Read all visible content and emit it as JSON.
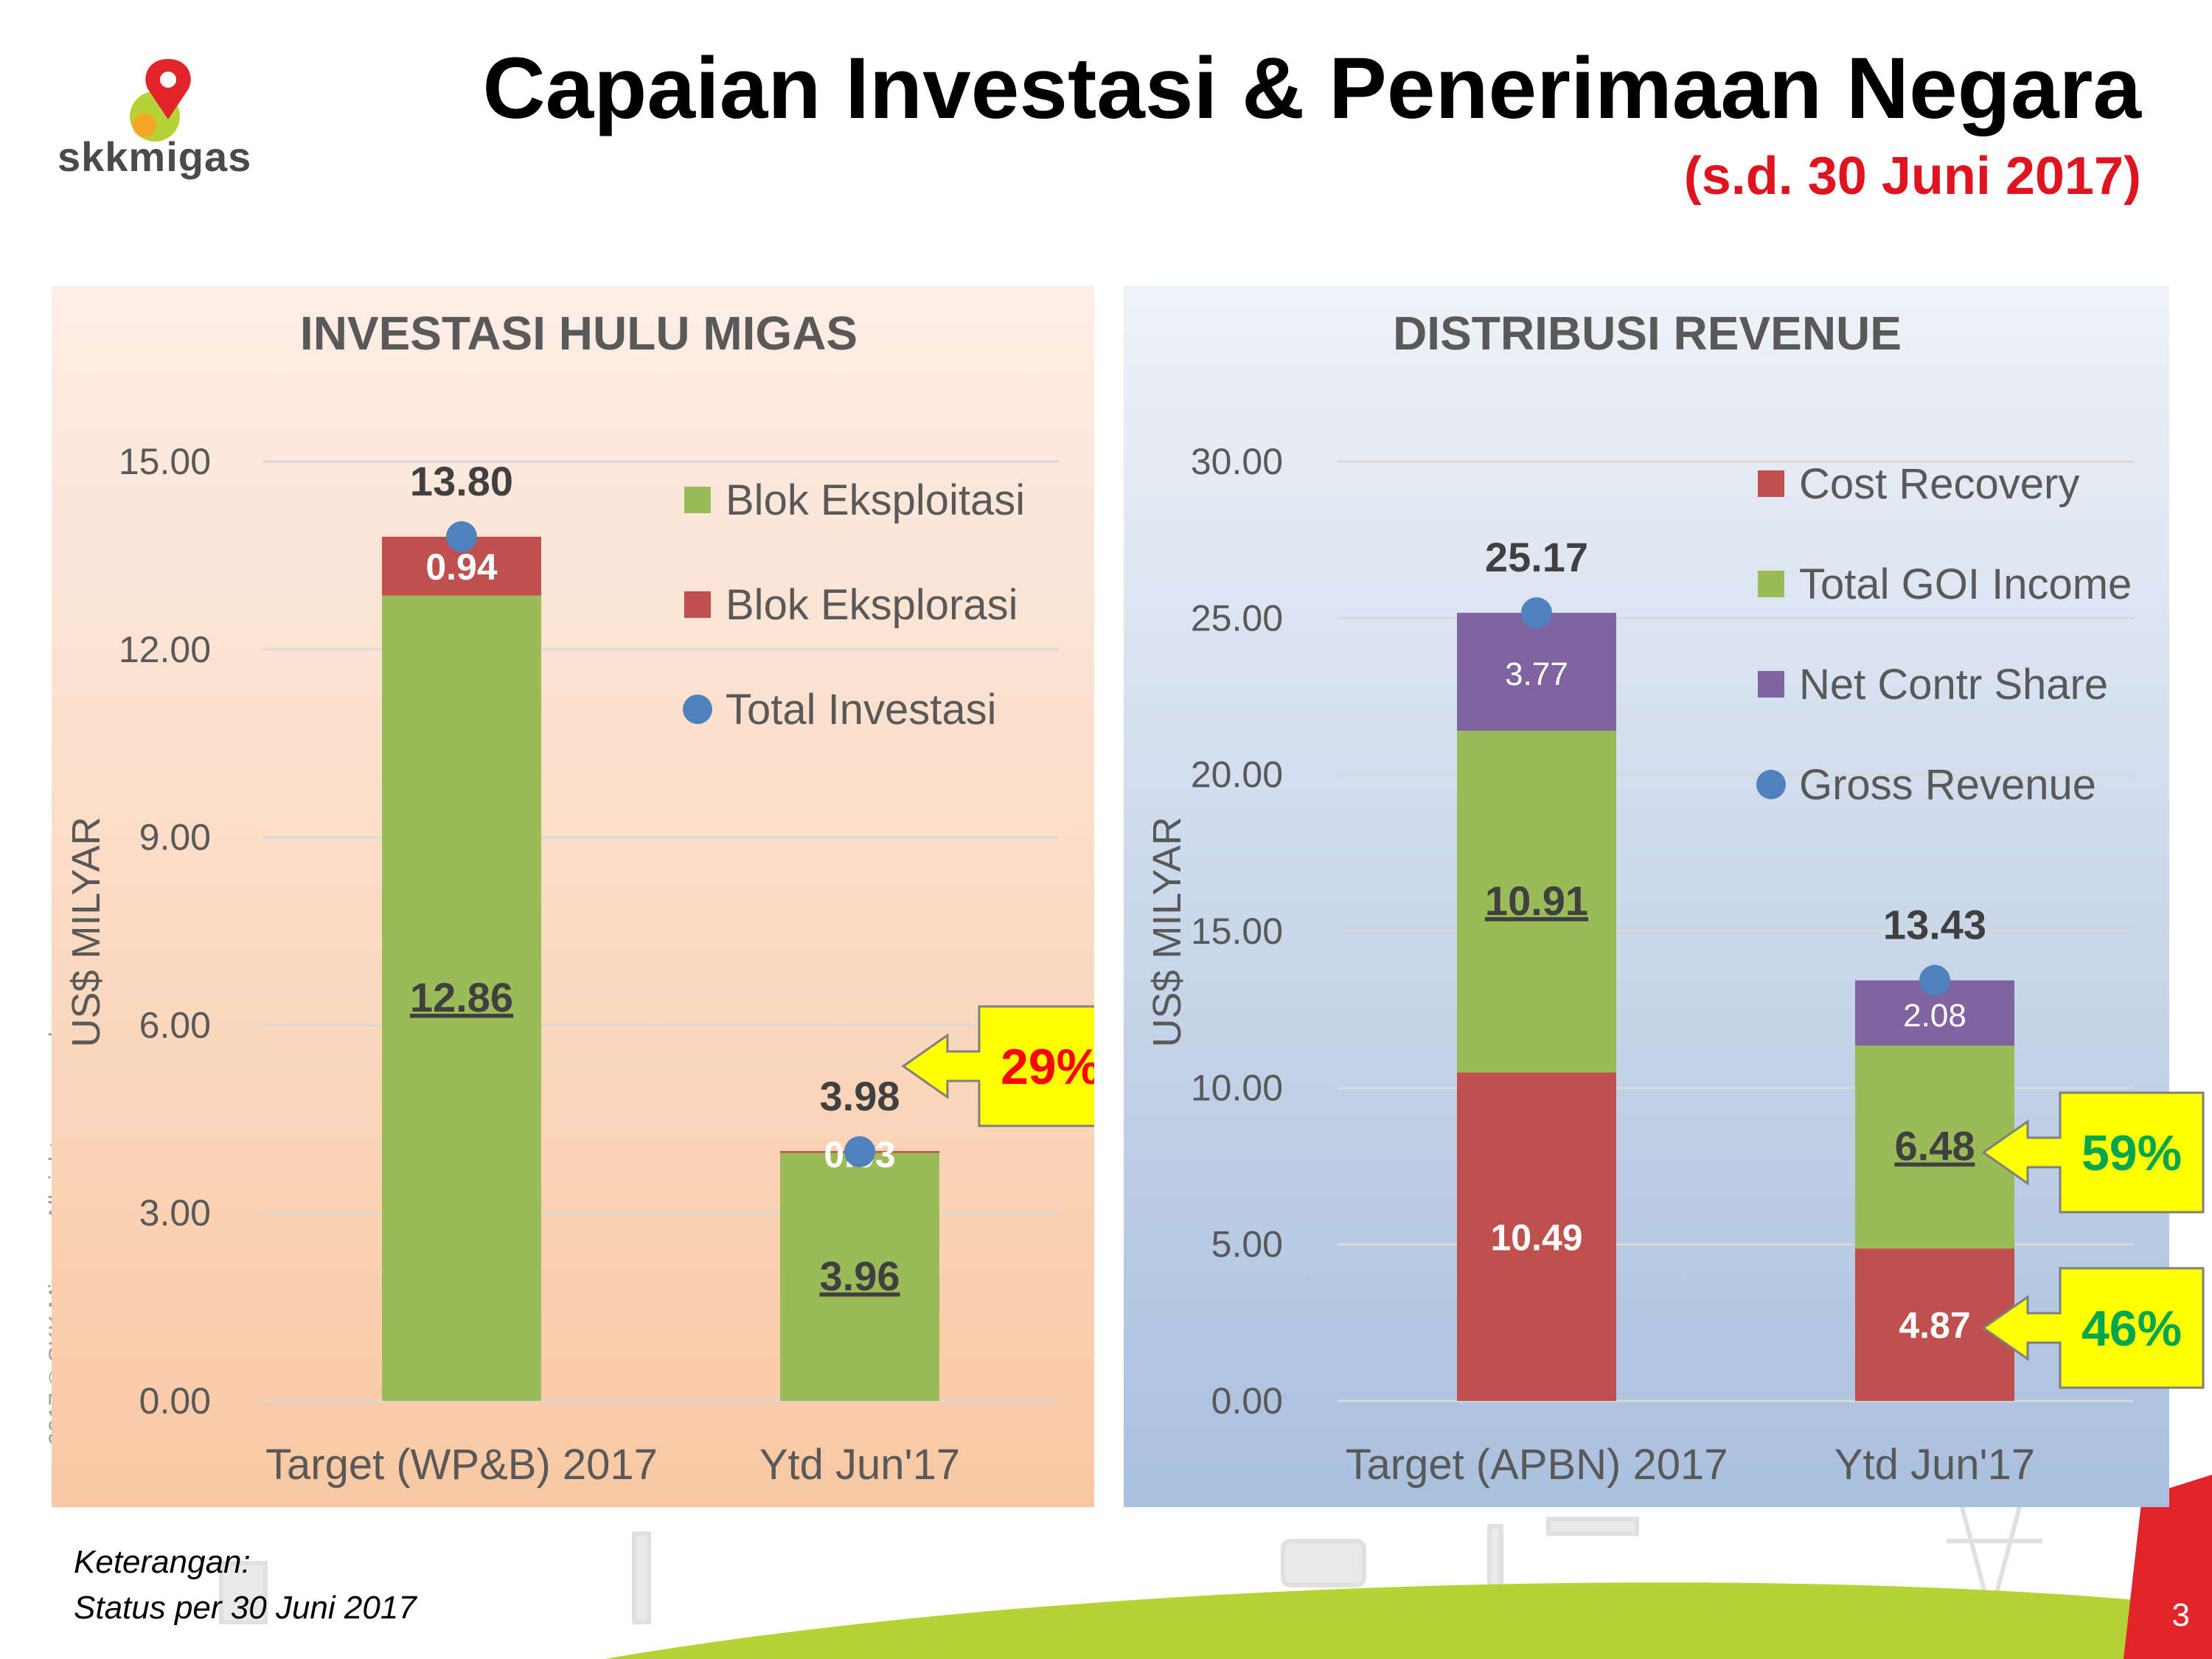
{
  "header": {
    "title": "Capaian Investasi & Penerimaan Negara",
    "subtitle": "(s.d. 30 Juni 2017)",
    "logo_text": "skkmigas"
  },
  "copyright": "2017 © SKK Migas – All rights reserved",
  "footer": {
    "note_label": "Keterangan:",
    "note_text": "Status per 30 Juni 2017",
    "page_number": "3"
  },
  "colors": {
    "green": "#9bbb59",
    "red": "#c0504d",
    "purple": "#8064a2",
    "blue": "#4f81bd",
    "callout_fill": "#ffff00",
    "callout_red": "#ff0000",
    "callout_green": "#00a650"
  },
  "chart_data": [
    {
      "type": "bar",
      "stacked": true,
      "title": "INVESTASI HULU MIGAS",
      "ylabel": "US$ MILYAR",
      "ylim": [
        0,
        15
      ],
      "yticks": [
        "0.00",
        "3.00",
        "6.00",
        "9.00",
        "12.00",
        "15.00"
      ],
      "categories": [
        "Target (WP&B) 2017",
        "Ytd Jun'17"
      ],
      "series": [
        {
          "name": "Blok Eksploitasi",
          "values": [
            12.86,
            3.96
          ],
          "labels": [
            "12.86",
            "3.96"
          ]
        },
        {
          "name": "Blok Eksplorasi",
          "values": [
            0.94,
            0.03
          ],
          "labels": [
            "0.94",
            "0.03"
          ]
        }
      ],
      "markers": {
        "name": "Total Investasi",
        "values": [
          13.8,
          3.98
        ],
        "labels": [
          "13.80",
          "3.98"
        ]
      },
      "legend": [
        "Blok Eksploitasi",
        "Blok Eksplorasi",
        "Total Investasi"
      ],
      "legend_position": "top-right",
      "callouts": [
        {
          "text": "29%",
          "category": 1
        }
      ]
    },
    {
      "type": "bar",
      "stacked": true,
      "title": "DISTRIBUSI REVENUE",
      "ylabel": "US$ MILYAR",
      "ylim": [
        0,
        30
      ],
      "yticks": [
        "0.00",
        "5.00",
        "10.00",
        "15.00",
        "20.00",
        "25.00",
        "30.00"
      ],
      "categories": [
        "Target (APBN) 2017",
        "Ytd Jun'17"
      ],
      "series": [
        {
          "name": "Cost Recovery",
          "values": [
            10.49,
            4.87
          ],
          "labels": [
            "10.49",
            "4.87"
          ]
        },
        {
          "name": "Total GOI Income",
          "values": [
            10.91,
            6.48
          ],
          "labels": [
            "10.91",
            "6.48"
          ]
        },
        {
          "name": "Net Contr Share",
          "values": [
            3.77,
            2.08
          ],
          "labels": [
            "3.77",
            "2.08"
          ]
        }
      ],
      "markers": {
        "name": "Gross Revenue",
        "values": [
          25.17,
          13.43
        ],
        "labels": [
          "25.17",
          "13.43"
        ]
      },
      "legend": [
        "Cost Recovery",
        "Total GOI Income",
        "Net Contr Share",
        "Gross Revenue"
      ],
      "legend_position": "top-right",
      "callouts": [
        {
          "text": "59%",
          "series": "Total GOI Income"
        },
        {
          "text": "46%",
          "series": "Cost Recovery"
        }
      ]
    }
  ]
}
